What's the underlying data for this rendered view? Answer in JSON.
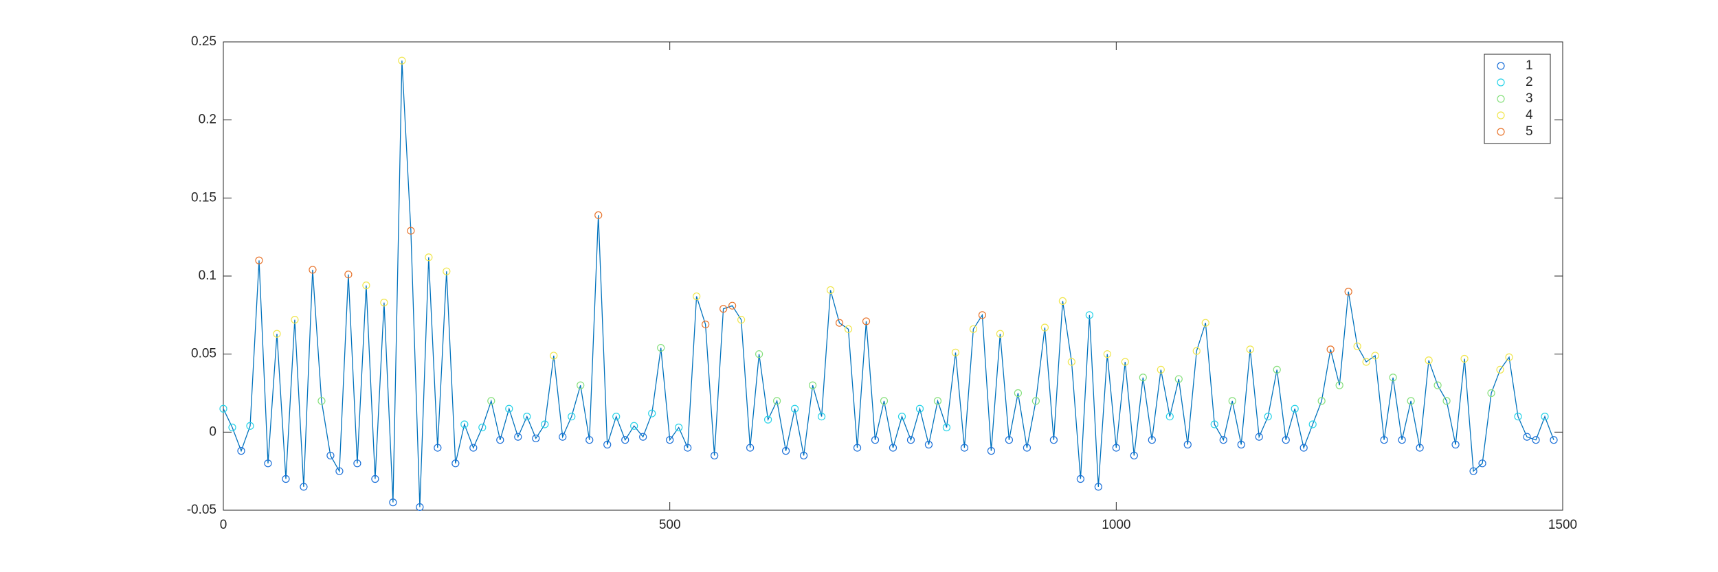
{
  "chart_data": {
    "type": "line",
    "x": [
      0,
      10,
      20,
      30,
      40,
      50,
      60,
      70,
      80,
      90,
      100,
      110,
      120,
      130,
      140,
      150,
      160,
      170,
      180,
      190,
      200,
      210,
      220,
      230,
      240,
      250,
      260,
      270,
      280,
      290,
      300,
      310,
      320,
      330,
      340,
      350,
      360,
      370,
      380,
      390,
      400,
      410,
      420,
      430,
      440,
      450,
      460,
      470,
      480,
      490,
      500,
      510,
      520,
      530,
      540,
      550,
      560,
      570,
      580,
      590,
      600,
      610,
      620,
      630,
      640,
      650,
      660,
      670,
      680,
      690,
      700,
      710,
      720,
      730,
      740,
      750,
      760,
      770,
      780,
      790,
      800,
      810,
      820,
      830,
      840,
      850,
      860,
      870,
      880,
      890,
      900,
      910,
      920,
      930,
      940,
      950,
      960,
      970,
      980,
      990,
      1000,
      1010,
      1020,
      1030,
      1040,
      1050,
      1060,
      1070,
      1080,
      1090,
      1100,
      1110,
      1120,
      1130,
      1140,
      1150,
      1160,
      1170,
      1180,
      1190,
      1200,
      1210,
      1220,
      1230,
      1240,
      1250,
      1260,
      1270,
      1280,
      1290,
      1300,
      1310,
      1320,
      1330,
      1340,
      1350,
      1360,
      1370,
      1380,
      1390,
      1400,
      1410,
      1420,
      1430,
      1440,
      1450,
      1460,
      1470,
      1480,
      1490
    ],
    "values": [
      0.015,
      0.003,
      -0.012,
      0.004,
      0.11,
      -0.02,
      0.063,
      -0.03,
      0.072,
      -0.035,
      0.104,
      0.02,
      -0.015,
      -0.025,
      0.101,
      -0.02,
      0.094,
      -0.03,
      0.083,
      -0.045,
      0.238,
      0.129,
      -0.048,
      0.112,
      -0.01,
      0.103,
      -0.02,
      0.005,
      -0.01,
      0.003,
      0.02,
      -0.005,
      0.015,
      -0.003,
      0.01,
      -0.004,
      0.005,
      0.049,
      -0.003,
      0.01,
      0.03,
      -0.005,
      0.139,
      -0.008,
      0.01,
      -0.005,
      0.004,
      -0.003,
      0.012,
      0.054,
      -0.005,
      0.003,
      -0.01,
      0.087,
      0.069,
      -0.015,
      0.079,
      0.081,
      0.072,
      -0.01,
      0.05,
      0.008,
      0.02,
      -0.012,
      0.015,
      -0.015,
      0.03,
      0.01,
      0.091,
      0.07,
      0.066,
      -0.01,
      0.071,
      -0.005,
      0.02,
      -0.01,
      0.01,
      -0.005,
      0.015,
      -0.008,
      0.02,
      0.003,
      0.051,
      -0.01,
      0.066,
      0.075,
      -0.012,
      0.063,
      -0.005,
      0.025,
      -0.01,
      0.02,
      0.067,
      -0.005,
      0.084,
      0.045,
      -0.03,
      0.075,
      -0.035,
      0.05,
      -0.01,
      0.045,
      -0.015,
      0.035,
      -0.005,
      0.04,
      0.01,
      0.034,
      -0.008,
      0.052,
      0.07,
      0.005,
      -0.005,
      0.02,
      -0.008,
      0.053,
      -0.003,
      0.01,
      0.04,
      -0.005,
      0.015,
      -0.01,
      0.005,
      0.02,
      0.053,
      0.03,
      0.09,
      0.055,
      0.045,
      0.049,
      -0.005,
      0.035,
      -0.005,
      0.02,
      -0.01,
      0.046,
      0.03,
      0.02,
      -0.008,
      0.047,
      -0.025,
      -0.02,
      0.025,
      0.04,
      0.048,
      0.01,
      -0.003,
      -0.005,
      0.01,
      -0.005
    ],
    "groups": [
      2,
      2,
      1,
      2,
      5,
      1,
      4,
      1,
      4,
      1,
      5,
      3,
      1,
      1,
      5,
      1,
      4,
      1,
      4,
      1,
      4,
      5,
      1,
      4,
      1,
      4,
      1,
      2,
      1,
      2,
      3,
      1,
      2,
      1,
      2,
      1,
      2,
      4,
      1,
      2,
      3,
      1,
      5,
      1,
      2,
      1,
      2,
      1,
      2,
      3,
      1,
      2,
      1,
      4,
      5,
      1,
      5,
      5,
      4,
      1,
      3,
      2,
      3,
      1,
      2,
      1,
      3,
      2,
      4,
      5,
      4,
      1,
      5,
      1,
      3,
      1,
      2,
      1,
      2,
      1,
      3,
      2,
      4,
      1,
      4,
      5,
      1,
      4,
      1,
      3,
      1,
      3,
      4,
      1,
      4,
      4,
      1,
      2,
      1,
      4,
      1,
      4,
      1,
      3,
      1,
      4,
      2,
      3,
      1,
      4,
      4,
      2,
      1,
      3,
      1,
      4,
      1,
      2,
      3,
      1,
      2,
      1,
      2,
      3,
      5,
      3,
      5,
      4,
      4,
      4,
      1,
      3,
      1,
      3,
      1,
      4,
      3,
      3,
      1,
      4,
      1,
      1,
      3,
      4,
      4,
      2,
      1,
      1,
      2,
      1
    ],
    "line_color": "#0072bd",
    "series": [
      {
        "name": "1",
        "color": "#1a6fd8"
      },
      {
        "name": "2",
        "color": "#27d3e8"
      },
      {
        "name": "3",
        "color": "#86e07c"
      },
      {
        "name": "4",
        "color": "#f0e64c"
      },
      {
        "name": "5",
        "color": "#e8742c"
      }
    ],
    "xlim": [
      0,
      1500
    ],
    "xticks": [
      0,
      500,
      1000,
      1500
    ],
    "ylim": [
      -0.05,
      0.25
    ],
    "yticks": [
      -0.05,
      0,
      0.05,
      0.1,
      0.15,
      0.2,
      0.25
    ],
    "legend": "upper right"
  }
}
